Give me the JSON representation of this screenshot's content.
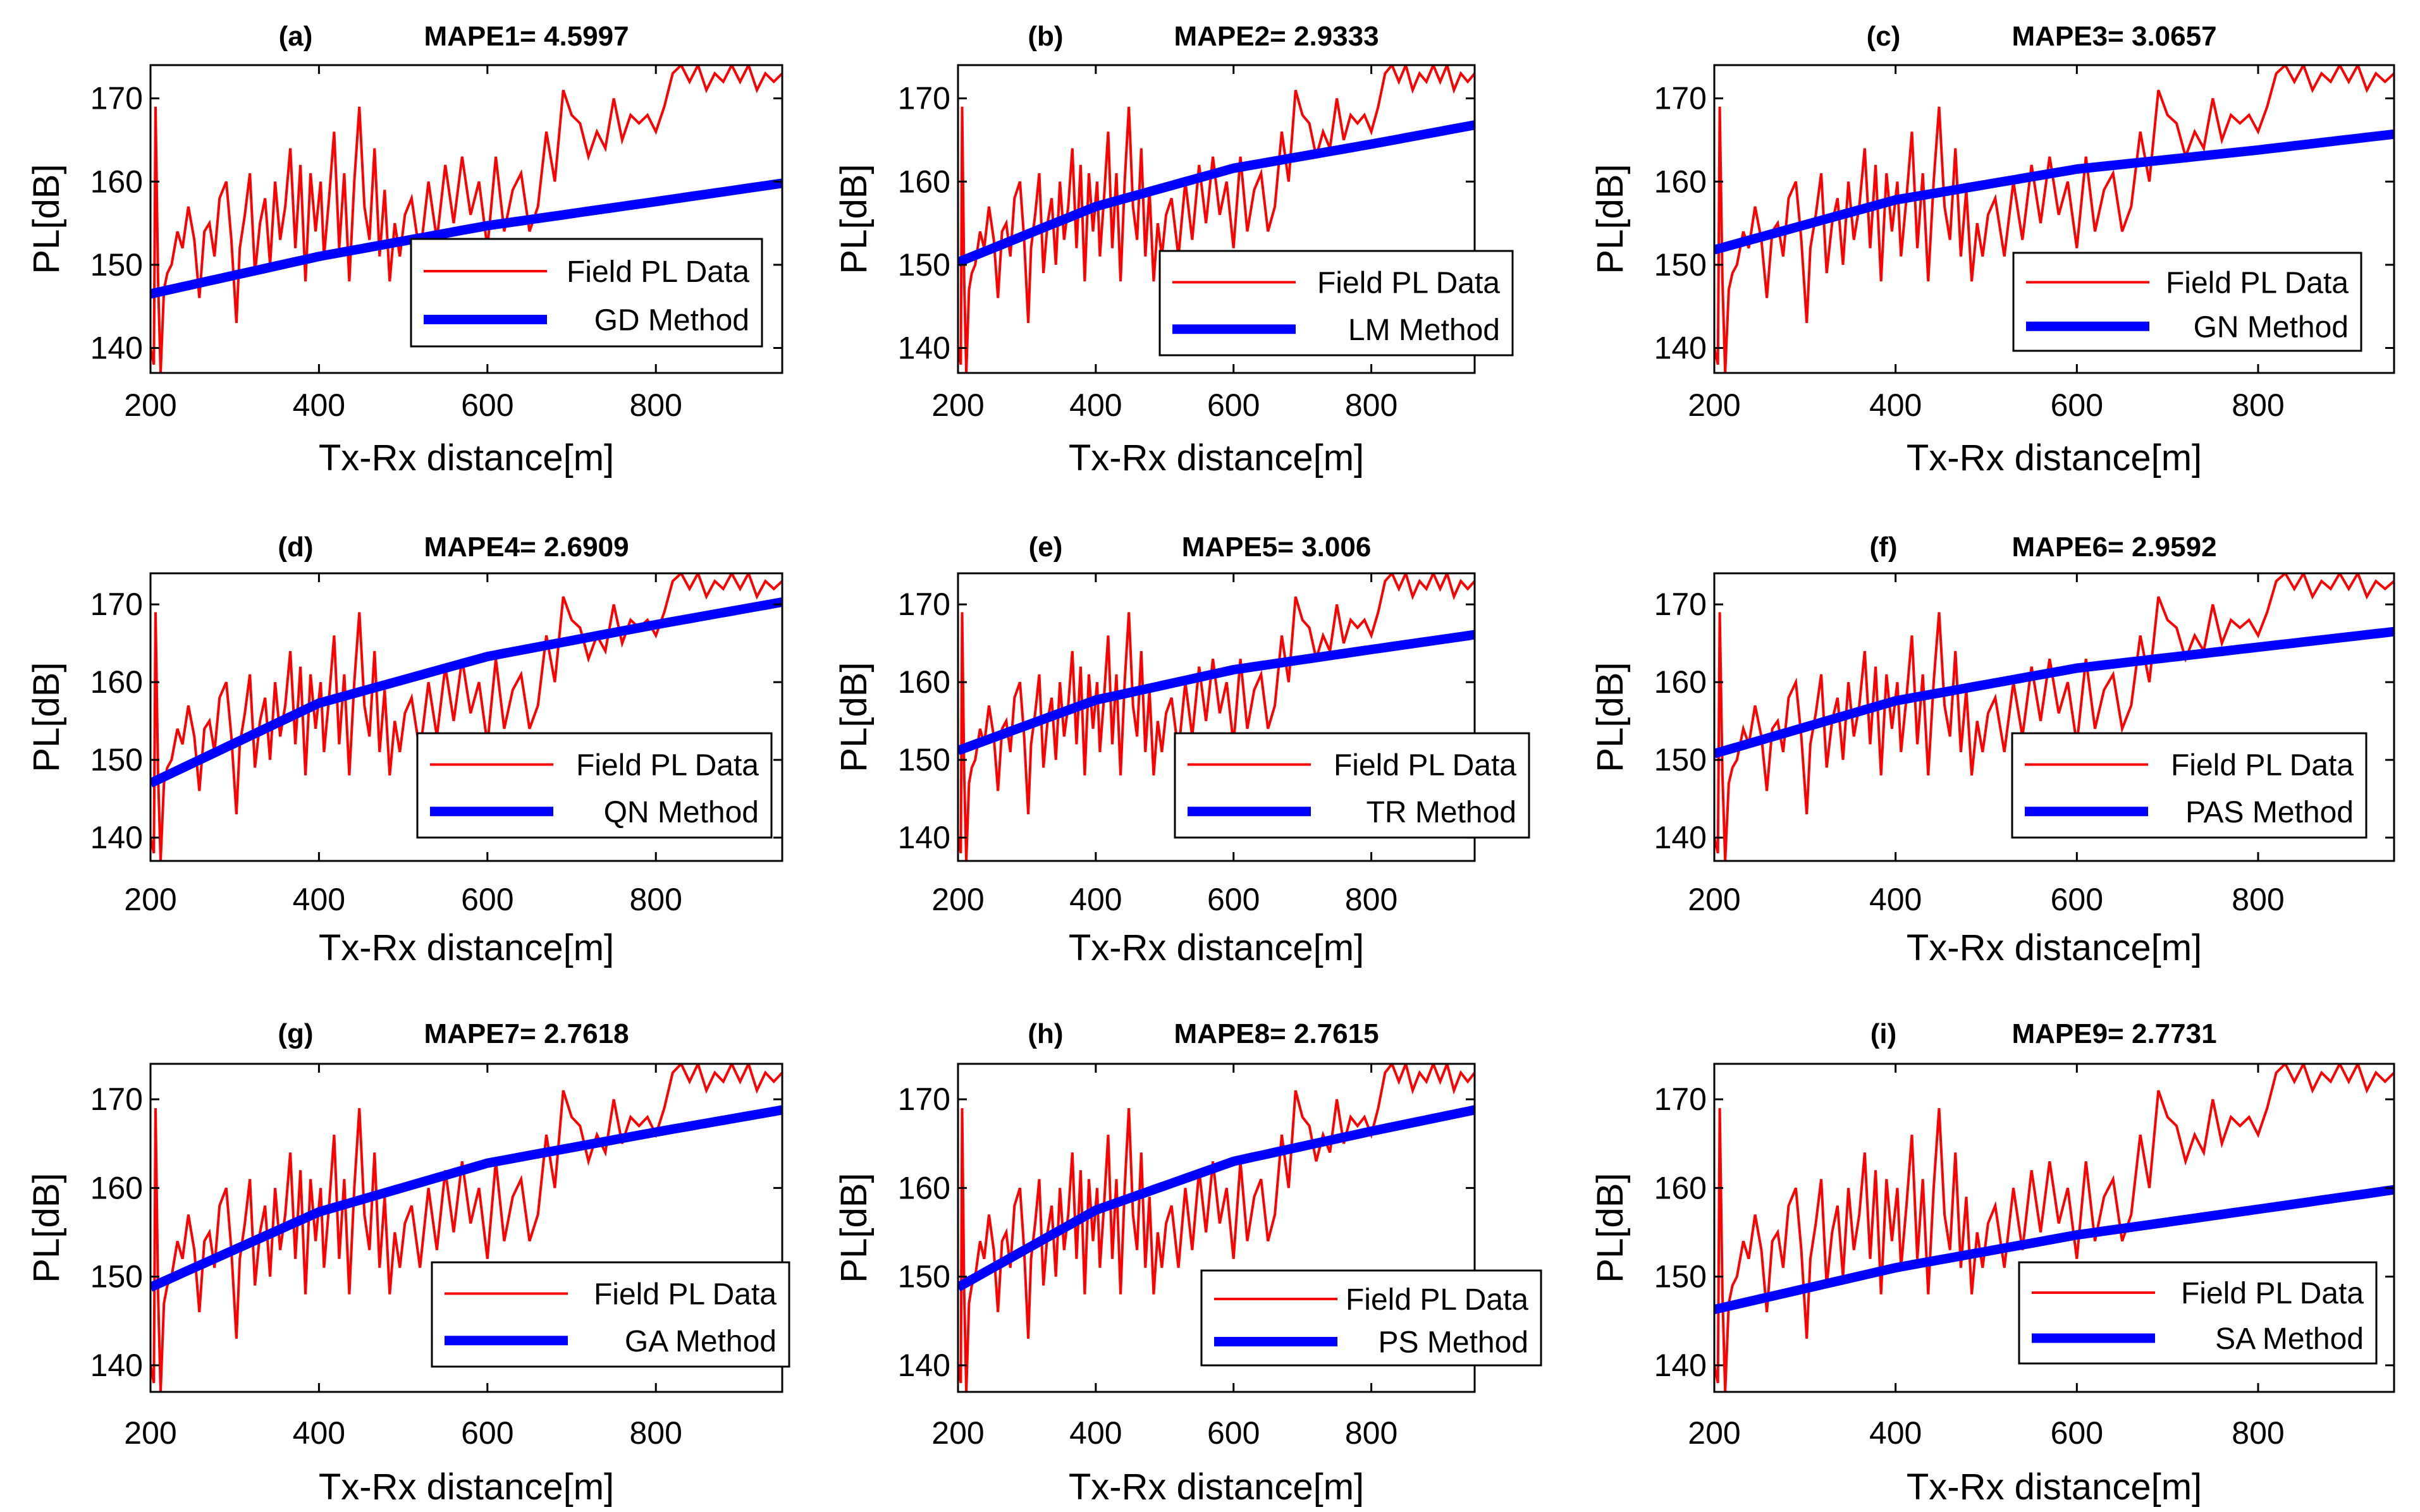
{
  "chart_data": [
    {
      "type": "line",
      "panel": "(a)",
      "title": "MAPE1= 4.5997",
      "xlabel": "Tx-Rx distance[m]",
      "ylabel": "PL[dB]",
      "xlim": [
        200,
        950
      ],
      "ylim": [
        137,
        174
      ],
      "xticks": [
        200,
        400,
        600,
        800
      ],
      "yticks": [
        140,
        150,
        160,
        170
      ],
      "series": [
        {
          "name": "Field PL Data",
          "color": "#ff0000"
        },
        {
          "name": "GD Method",
          "color": "#0000ff",
          "values": [
            146.5,
            151.0,
            154.7,
            157.6,
            159.8
          ]
        }
      ],
      "legend": "lower-right"
    },
    {
      "type": "line",
      "panel": "(b)",
      "title": "MAPE2= 2.9333",
      "xlabel": "Tx-Rx distance[m]",
      "ylabel": "PL[dB]",
      "xlim": [
        200,
        950
      ],
      "ylim": [
        137,
        174
      ],
      "xticks": [
        200,
        400,
        600,
        800
      ],
      "yticks": [
        140,
        150,
        160,
        170
      ],
      "series": [
        {
          "name": "Field PL Data",
          "color": "#ff0000"
        },
        {
          "name": "LM Method",
          "color": "#0000ff",
          "values": [
            150.3,
            157.0,
            161.6,
            164.5,
            166.8
          ]
        }
      ],
      "legend": "lower-right"
    },
    {
      "type": "line",
      "panel": "(c)",
      "title": "MAPE3= 3.0657",
      "xlabel": "Tx-Rx distance[m]",
      "ylabel": "PL[dB]",
      "xlim": [
        200,
        950
      ],
      "ylim": [
        137,
        174
      ],
      "xticks": [
        200,
        400,
        600,
        800
      ],
      "yticks": [
        140,
        150,
        160,
        170
      ],
      "series": [
        {
          "name": "Field PL Data",
          "color": "#ff0000"
        },
        {
          "name": "GN Method",
          "color": "#0000ff",
          "values": [
            151.8,
            157.8,
            161.5,
            163.8,
            165.7
          ]
        }
      ],
      "legend": "lower-right"
    },
    {
      "type": "line",
      "panel": "(d)",
      "title": "MAPE4= 2.6909",
      "xlabel": "Tx-Rx distance[m]",
      "ylabel": "PL[dB]",
      "xlim": [
        200,
        950
      ],
      "ylim": [
        137,
        174
      ],
      "xticks": [
        200,
        400,
        600,
        800
      ],
      "yticks": [
        140,
        150,
        160,
        170
      ],
      "series": [
        {
          "name": "Field PL Data",
          "color": "#ff0000"
        },
        {
          "name": "QN Method",
          "color": "#0000ff",
          "values": [
            147.0,
            157.3,
            163.3,
            167.4,
            170.3
          ]
        }
      ],
      "legend": "lower-right"
    },
    {
      "type": "line",
      "panel": "(e)",
      "title": "MAPE5= 3.006",
      "xlabel": "Tx-Rx distance[m]",
      "ylabel": "PL[dB]",
      "xlim": [
        200,
        950
      ],
      "ylim": [
        137,
        174
      ],
      "xticks": [
        200,
        400,
        600,
        800
      ],
      "yticks": [
        140,
        150,
        160,
        170
      ],
      "series": [
        {
          "name": "Field PL Data",
          "color": "#ff0000"
        },
        {
          "name": "TR Method",
          "color": "#0000ff",
          "values": [
            151.2,
            157.7,
            161.6,
            164.2,
            166.1
          ]
        }
      ],
      "legend": "lower-right"
    },
    {
      "type": "line",
      "panel": "(f)",
      "title": "MAPE6= 2.9592",
      "xlabel": "Tx-Rx distance[m]",
      "ylabel": "PL[dB]",
      "xlim": [
        200,
        950
      ],
      "ylim": [
        137,
        174
      ],
      "xticks": [
        200,
        400,
        600,
        800
      ],
      "yticks": [
        140,
        150,
        160,
        170
      ],
      "series": [
        {
          "name": "Field PL Data",
          "color": "#ff0000"
        },
        {
          "name": "PAS Method",
          "color": "#0000ff",
          "values": [
            150.8,
            157.6,
            161.8,
            164.5,
            166.5
          ]
        }
      ],
      "legend": "lower-right"
    },
    {
      "type": "line",
      "panel": "(g)",
      "title": "MAPE7= 2.7618",
      "xlabel": "Tx-Rx distance[m]",
      "ylabel": "PL[dB]",
      "xlim": [
        200,
        950
      ],
      "ylim": [
        137,
        174
      ],
      "xticks": [
        200,
        400,
        600,
        800
      ],
      "yticks": [
        140,
        150,
        160,
        170
      ],
      "series": [
        {
          "name": "Field PL Data",
          "color": "#ff0000"
        },
        {
          "name": "GA Method",
          "color": "#0000ff",
          "values": [
            148.8,
            157.3,
            162.8,
            166.3,
            168.8
          ]
        }
      ],
      "legend": "lower-right"
    },
    {
      "type": "line",
      "panel": "(h)",
      "title": "MAPE8= 2.7615",
      "xlabel": "Tx-Rx distance[m]",
      "ylabel": "PL[dB]",
      "xlim": [
        200,
        950
      ],
      "ylim": [
        137,
        174
      ],
      "xticks": [
        200,
        400,
        600,
        800
      ],
      "yticks": [
        140,
        150,
        160,
        170
      ],
      "series": [
        {
          "name": "Field PL Data",
          "color": "#ff0000"
        },
        {
          "name": "PS Method",
          "color": "#0000ff",
          "values": [
            148.8,
            157.5,
            163.0,
            166.4,
            168.8
          ]
        }
      ],
      "legend": "lower-right"
    },
    {
      "type": "line",
      "panel": "(i)",
      "title": "MAPE9= 2.7731",
      "xlabel": "Tx-Rx distance[m]",
      "ylabel": "PL[dB]",
      "xlim": [
        200,
        950
      ],
      "ylim": [
        137,
        174
      ],
      "xticks": [
        200,
        400,
        600,
        800
      ],
      "yticks": [
        140,
        150,
        160,
        170
      ],
      "series": [
        {
          "name": "Field PL Data",
          "color": "#ff0000"
        },
        {
          "name": "SA Method",
          "color": "#0000ff",
          "values": [
            146.3,
            151.0,
            154.7,
            157.6,
            159.8
          ]
        }
      ],
      "legend": "lower-right"
    }
  ],
  "field_pl_data": {
    "x": [
      200,
      204,
      206,
      209,
      212,
      216,
      220,
      225,
      232,
      238,
      245,
      252,
      258,
      264,
      270,
      276,
      282,
      290,
      296,
      302,
      306,
      312,
      318,
      324,
      330,
      336,
      342,
      348,
      354,
      360,
      366,
      372,
      378,
      384,
      390,
      396,
      402,
      406,
      412,
      418,
      424,
      430,
      436,
      442,
      448,
      454,
      460,
      466,
      472,
      478,
      484,
      490,
      496,
      502,
      510,
      520,
      530,
      540,
      550,
      560,
      570,
      580,
      590,
      600,
      610,
      620,
      630,
      640,
      650,
      660,
      670,
      680,
      690,
      700,
      710,
      720,
      730,
      740,
      750,
      760,
      770,
      780,
      790,
      800,
      810,
      820,
      830,
      840,
      850,
      860,
      870,
      880,
      890,
      900,
      910,
      920,
      930,
      940,
      950
    ],
    "y": [
      140,
      138,
      169,
      148,
      137,
      147,
      149,
      150,
      154,
      152,
      157,
      153,
      146,
      154,
      155,
      151,
      158,
      160,
      153,
      143,
      152,
      156,
      161,
      149,
      155,
      158,
      150,
      160,
      153,
      157,
      164,
      152,
      162,
      148,
      161,
      154,
      160,
      151,
      158,
      166,
      152,
      161,
      148,
      160,
      169,
      157,
      153,
      164,
      151,
      159,
      148,
      155,
      151,
      156,
      158,
      151,
      160,
      153,
      162,
      155,
      163,
      156,
      160,
      152,
      163,
      154,
      159,
      161,
      154,
      157,
      166,
      160,
      171,
      168,
      167,
      163,
      166,
      164,
      170,
      165,
      168,
      167,
      168,
      166,
      169,
      173,
      174,
      172,
      174,
      171,
      173,
      172,
      174,
      172,
      174,
      171,
      173,
      172,
      173
    ]
  }
}
